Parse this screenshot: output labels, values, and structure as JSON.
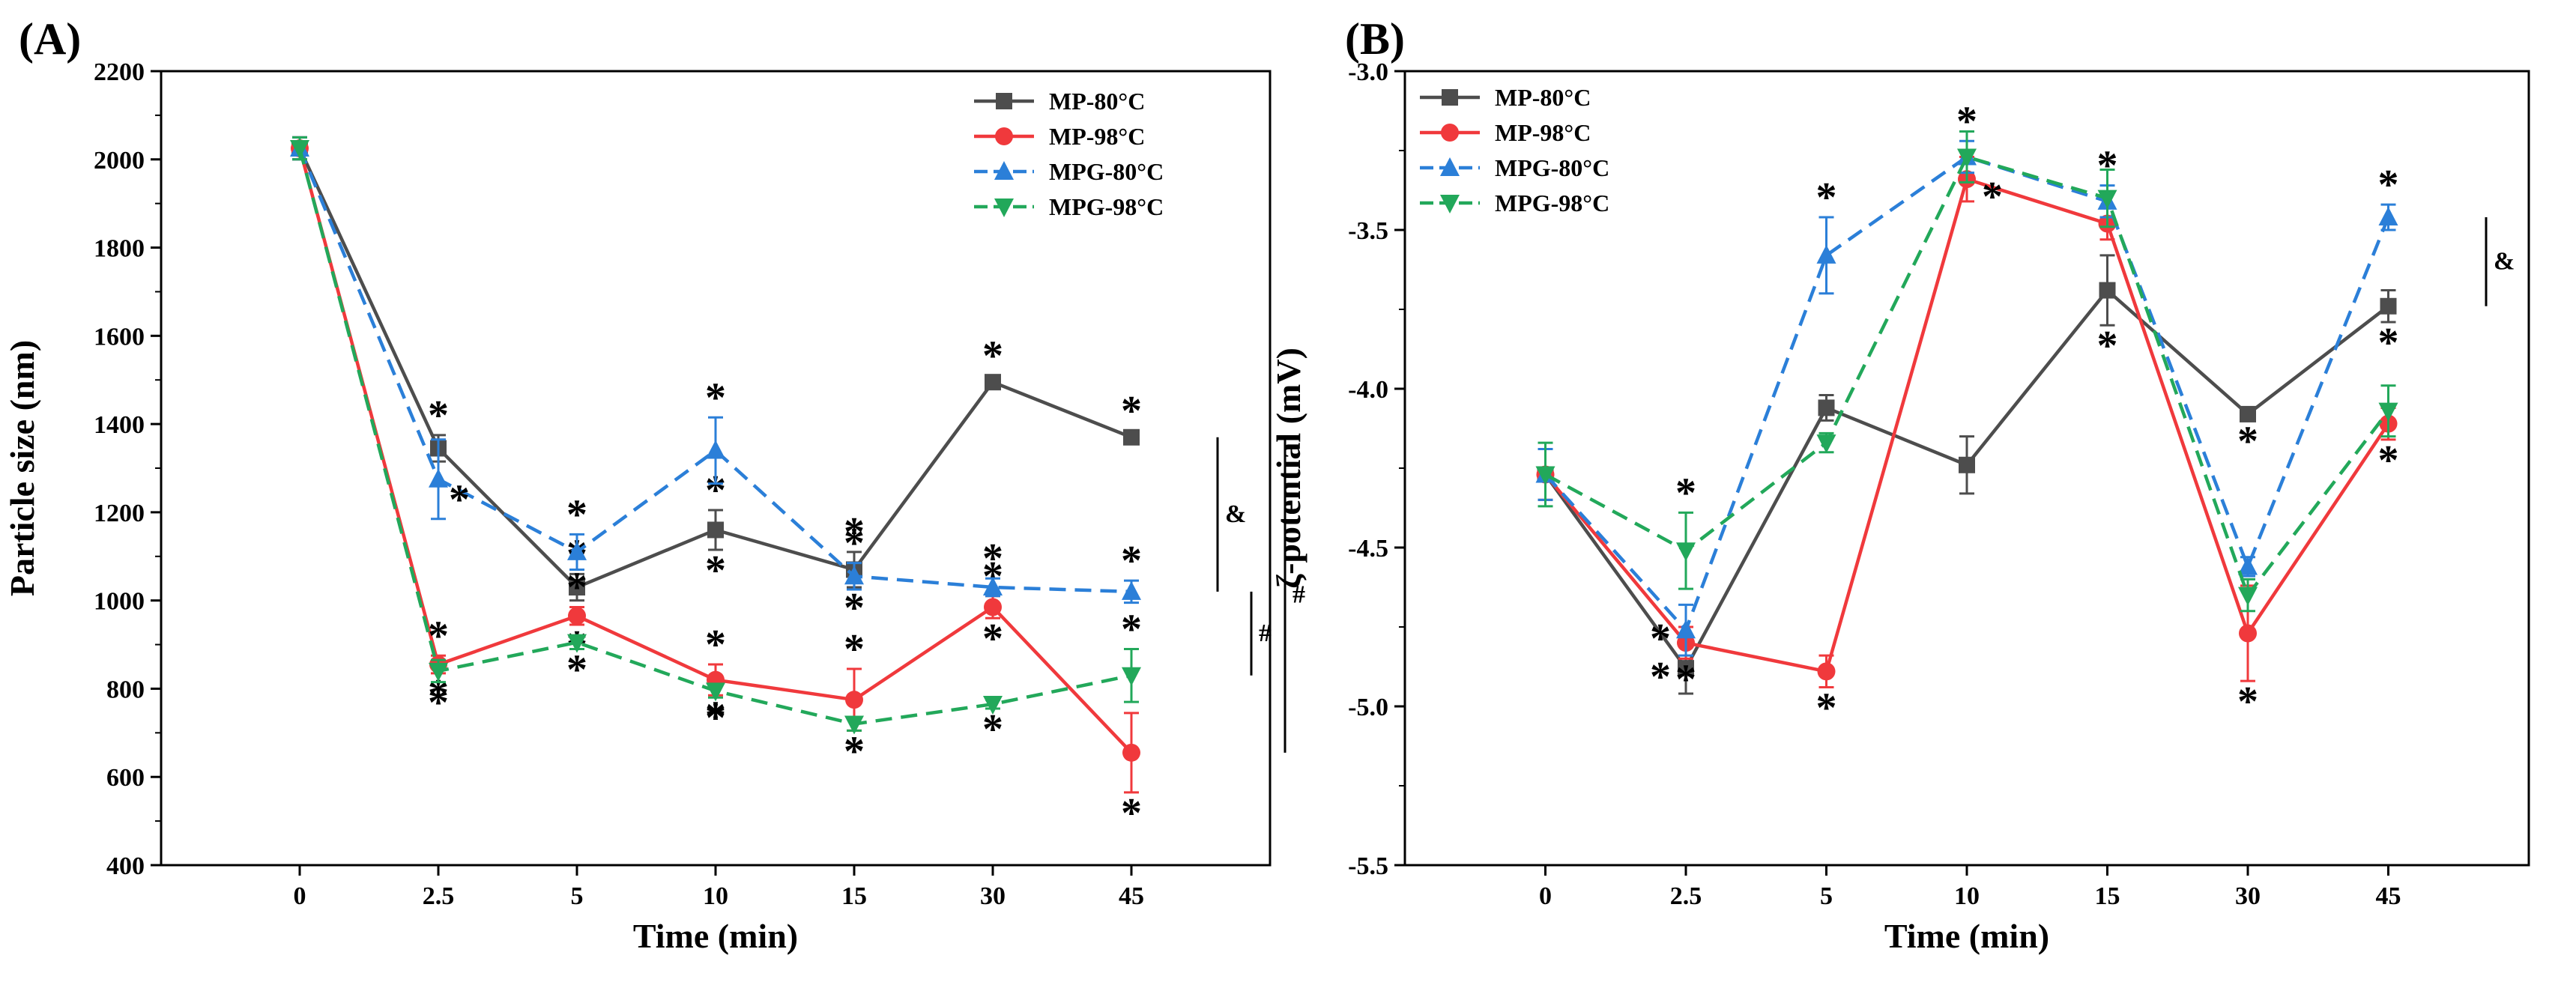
{
  "chart_data": [
    {
      "type": "line",
      "panel": "(A)",
      "xlabel": "Time (min)",
      "ylabel": "Particle size (nm)",
      "categories": [
        "0",
        "2.5",
        "5",
        "10",
        "15",
        "30",
        "45"
      ],
      "ylim": [
        400,
        2200
      ],
      "yticks": [
        400,
        600,
        800,
        1000,
        1200,
        1400,
        1600,
        1800,
        2000,
        2200
      ],
      "legend_position": "top-right",
      "series": [
        {
          "name": "MP-80°C",
          "color": "#4d4d4d",
          "marker": "square",
          "dashed": false,
          "values": [
            2025,
            1345,
            1030,
            1160,
            1070,
            1495,
            1370
          ],
          "errors": [
            25,
            30,
            30,
            45,
            40,
            15,
            15
          ],
          "stars": [
            [],
            [
              "above"
            ],
            [
              "above"
            ],
            [
              "above",
              "below"
            ],
            [
              "above",
              "below"
            ],
            [
              "above"
            ],
            [
              "above"
            ]
          ]
        },
        {
          "name": "MP-98°C",
          "color": "#f0393c",
          "marker": "circle",
          "dashed": false,
          "values": [
            2025,
            855,
            965,
            820,
            775,
            985,
            655
          ],
          "errors": [
            25,
            20,
            20,
            35,
            70,
            25,
            90
          ],
          "stars": [
            [],
            [
              "above",
              "below"
            ],
            [
              "above",
              "below"
            ],
            [
              "above",
              "below"
            ],
            [
              "above",
              "below"
            ],
            [
              "above",
              "below"
            ],
            [
              "below"
            ]
          ]
        },
        {
          "name": "MPG-80°C",
          "color": "#2b7fd8",
          "marker": "triangle-up",
          "dashed": true,
          "values": [
            2025,
            1275,
            1110,
            1340,
            1055,
            1030,
            1020
          ],
          "errors": [
            25,
            90,
            40,
            75,
            30,
            20,
            25
          ],
          "stars": [
            [],
            [
              "side"
            ],
            [
              "above"
            ],
            [
              "above"
            ],
            [
              "above"
            ],
            [
              "above"
            ],
            [
              "above"
            ]
          ]
        },
        {
          "name": "MPG-98°C",
          "color": "#22a85a",
          "marker": "triangle-down",
          "dashed": true,
          "values": [
            2025,
            840,
            905,
            795,
            720,
            765,
            830
          ],
          "errors": [
            25,
            25,
            15,
            15,
            15,
            10,
            60
          ],
          "stars": [
            [],
            [
              "below"
            ],
            [
              "below"
            ],
            [
              "below"
            ],
            [
              "below"
            ],
            [
              "below"
            ],
            [
              "above"
            ]
          ]
        }
      ],
      "annotations": [
        {
          "symbol": "&",
          "from": 1370,
          "to": 1020
        },
        {
          "symbol": "#",
          "from": 1020,
          "to": 830
        },
        {
          "symbol": "#",
          "from": 1370,
          "to": 655
        }
      ]
    },
    {
      "type": "line",
      "panel": "(B)",
      "xlabel": "Time (min)",
      "ylabel": "ζ-potential (mV)",
      "categories": [
        "0",
        "2.5",
        "5",
        "10",
        "15",
        "30",
        "45"
      ],
      "ylim": [
        -5.5,
        -3.0
      ],
      "yticks": [
        -5.5,
        -5.0,
        -4.5,
        -4.0,
        -3.5,
        -3.0
      ],
      "ytick_labels": [
        "-5.5",
        "-5.0",
        "-4.5",
        "-4.0",
        "-3.5",
        "-3.0"
      ],
      "legend_position": "top-left",
      "series": [
        {
          "name": "MP-80°C",
          "color": "#4d4d4d",
          "marker": "square",
          "dashed": false,
          "values": [
            -4.27,
            -4.88,
            -4.06,
            -4.24,
            -3.69,
            -4.08,
            -3.74
          ],
          "errors": [
            0.08,
            0.08,
            0.04,
            0.09,
            0.11,
            0.02,
            0.05
          ],
          "stars": [
            [],
            [
              "left"
            ],
            [],
            [],
            [
              "below"
            ],
            [
              "below"
            ],
            [
              "below"
            ]
          ]
        },
        {
          "name": "MP-98°C",
          "color": "#f0393c",
          "marker": "circle",
          "dashed": false,
          "values": [
            -4.27,
            -4.8,
            -4.89,
            -3.34,
            -3.48,
            -4.77,
            -4.11
          ],
          "errors": [
            0.08,
            0.05,
            0.05,
            0.07,
            0.05,
            0.15,
            0.05
          ],
          "stars": [
            [],
            [
              "below"
            ],
            [
              "below"
            ],
            [
              "right"
            ],
            [],
            [
              "below"
            ],
            [
              "below"
            ]
          ]
        },
        {
          "name": "MPG-80°C",
          "color": "#2b7fd8",
          "marker": "triangle-up",
          "dashed": true,
          "values": [
            -4.27,
            -4.76,
            -3.58,
            -3.27,
            -3.41,
            -4.56,
            -3.46
          ],
          "errors": [
            0.08,
            0.08,
            0.12,
            0.05,
            0.05,
            0.03,
            0.04
          ],
          "stars": [
            [],
            [
              "left"
            ],
            [
              "above"
            ],
            [
              "above"
            ],
            [
              "above"
            ],
            [],
            [
              "above"
            ]
          ]
        },
        {
          "name": "MPG-98°C",
          "color": "#22a85a",
          "marker": "triangle-down",
          "dashed": true,
          "values": [
            -4.27,
            -4.51,
            -4.17,
            -3.27,
            -3.4,
            -4.65,
            -4.07
          ],
          "errors": [
            0.1,
            0.12,
            0.03,
            0.08,
            0.09,
            0.05,
            0.08
          ],
          "stars": [
            [],
            [
              "above"
            ],
            [],
            [],
            [],
            [],
            []
          ]
        }
      ],
      "annotations": [
        {
          "symbol": "&",
          "from": -3.46,
          "to": -3.74
        }
      ]
    }
  ]
}
